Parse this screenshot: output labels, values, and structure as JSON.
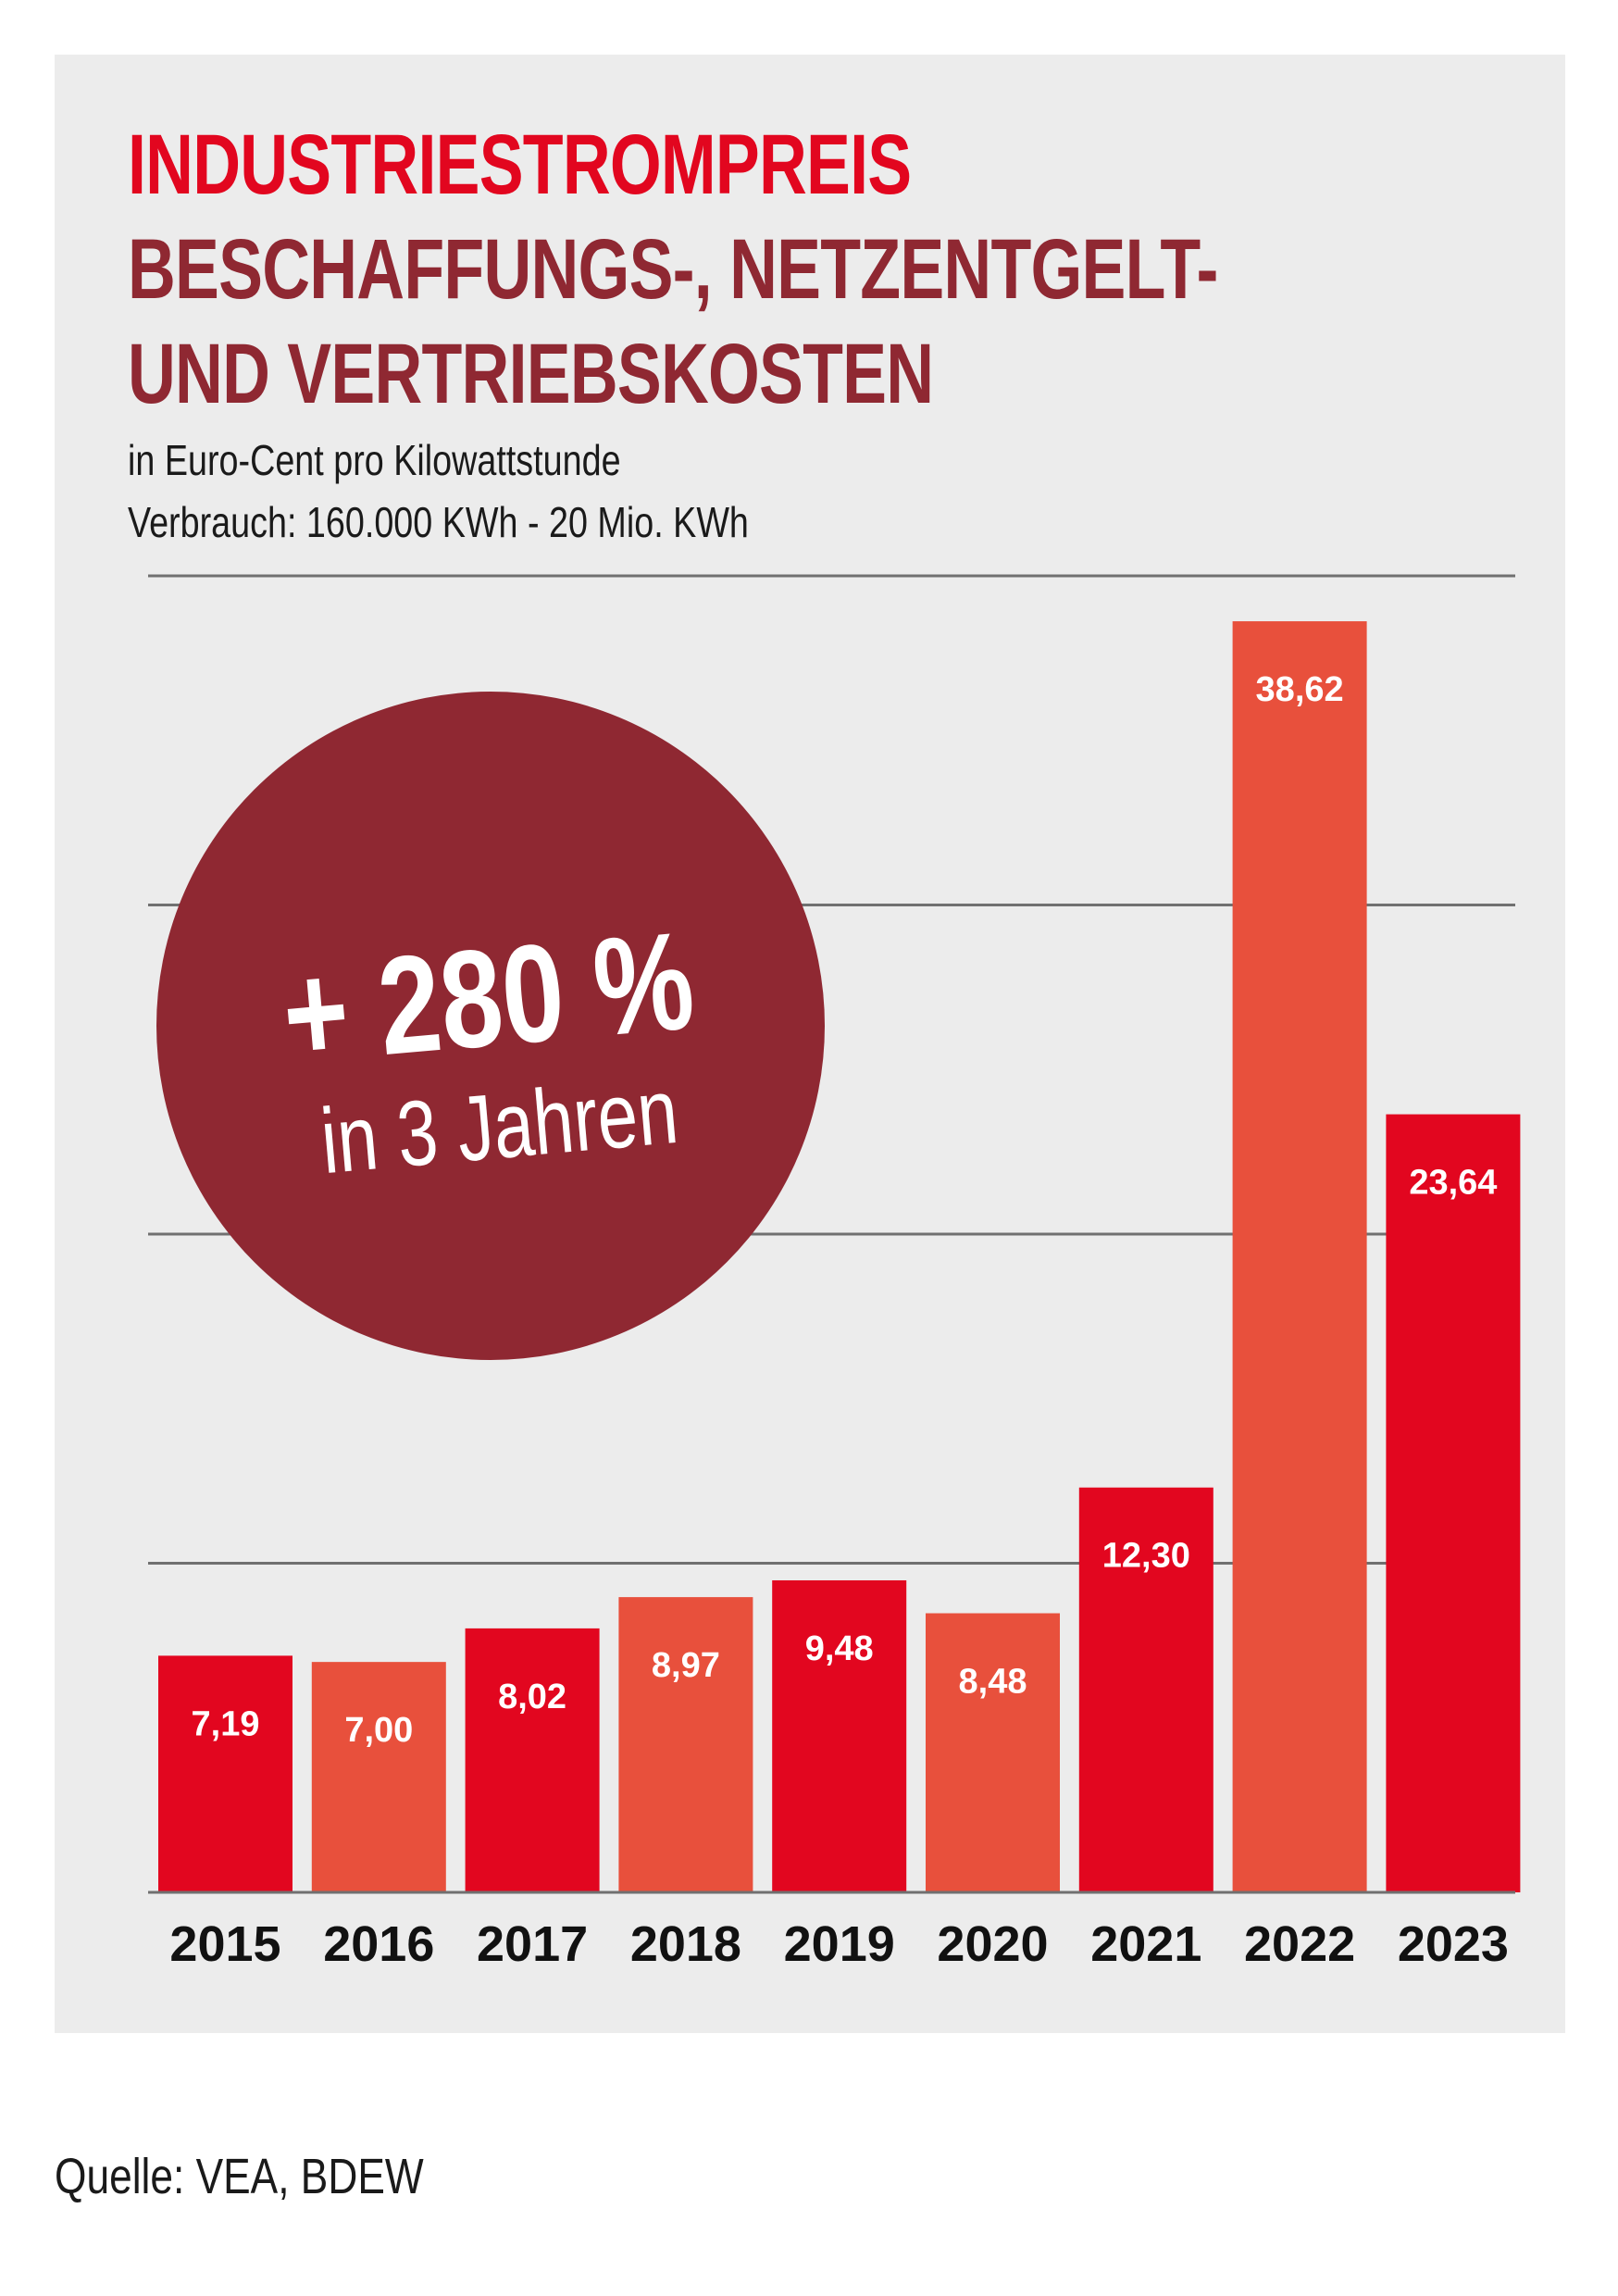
{
  "header": {
    "title_line1": "INDUSTRIESTROMPREIS",
    "title_line2": "BESCHAFFUNGS-, NETZENTGELT-",
    "title_line3": "UND VERTRIEBSKOSTEN",
    "subtitle_line1": "in Euro-Cent pro Kilowattstunde",
    "subtitle_line2": "Verbrauch: 160.000 KWh - 20 Mio. KWh"
  },
  "badge": {
    "headline": "+ 280 %",
    "subline": "in 3 Jahren"
  },
  "source": "Quelle: VEA, BDEW",
  "colors": {
    "primary_red": "#e2061f",
    "secondary_red": "#e8503c",
    "dark_red": "#8f2832",
    "panel_gray": "#ececec",
    "gridline": "#707070"
  },
  "chart_data": {
    "type": "bar",
    "title": "INDUSTRIESTROMPREIS BESCHAFFUNGS-, NETZENTGELT- UND VERTRIEBSKOSTEN",
    "subtitle": "in Euro-Cent pro Kilowattstunde; Verbrauch: 160.000 KWh - 20 Mio. KWh",
    "xlabel": "",
    "ylabel": "",
    "categories": [
      "2015",
      "2016",
      "2017",
      "2018",
      "2019",
      "2020",
      "2021",
      "2022",
      "2023"
    ],
    "values": [
      7.19,
      7.0,
      8.02,
      8.97,
      9.48,
      8.48,
      12.3,
      38.62,
      23.64
    ],
    "value_labels": [
      "7,19",
      "7,00",
      "8,02",
      "8,97",
      "9,48",
      "8,48",
      "12,30",
      "38,62",
      "23,64"
    ],
    "bar_colors": [
      "#e2061f",
      "#e8503c",
      "#e2061f",
      "#e8503c",
      "#e2061f",
      "#e8503c",
      "#e2061f",
      "#e8503c",
      "#e2061f"
    ],
    "ylim": [
      0,
      40
    ],
    "gridlines": [
      10,
      20,
      30,
      40
    ],
    "grid": true,
    "y_tick_labels_shown": false,
    "annotation": "+ 280 % in 3 Jahren",
    "legend": "none",
    "source": "Quelle: VEA, BDEW"
  }
}
